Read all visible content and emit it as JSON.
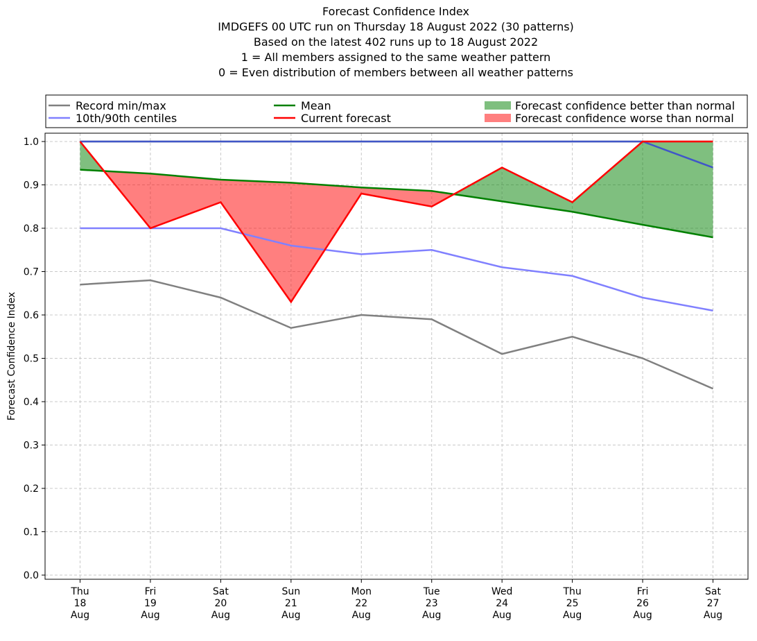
{
  "chart_data": {
    "type": "line",
    "title": "Forecast Confidence Index",
    "subtitle_lines": [
      "IMDGEFS 00 UTC run on Thursday 18 August 2022 (30 patterns)",
      "Based on the latest 402 runs up to 18 August 2022",
      "1 = All members assigned to the same weather pattern",
      "0 = Even distribution of members between all weather patterns"
    ],
    "xlabel": "",
    "ylabel": "Forecast Confidence Index",
    "ylim": [
      0.0,
      1.0
    ],
    "yticks": [
      "0.0",
      "0.1",
      "0.2",
      "0.3",
      "0.4",
      "0.5",
      "0.6",
      "0.7",
      "0.8",
      "0.9",
      "1.0"
    ],
    "categories": [
      [
        "Thu",
        "18",
        "Aug"
      ],
      [
        "Fri",
        "19",
        "Aug"
      ],
      [
        "Sat",
        "20",
        "Aug"
      ],
      [
        "Sun",
        "21",
        "Aug"
      ],
      [
        "Mon",
        "22",
        "Aug"
      ],
      [
        "Tue",
        "23",
        "Aug"
      ],
      [
        "Wed",
        "24",
        "Aug"
      ],
      [
        "Thu",
        "25",
        "Aug"
      ],
      [
        "Fri",
        "26",
        "Aug"
      ],
      [
        "Sat",
        "27",
        "Aug"
      ]
    ],
    "grid": true,
    "legend_position": "top",
    "series": [
      {
        "name": "Record min/max",
        "role": "record_min",
        "color": "#808080",
        "values": [
          0.67,
          0.68,
          0.64,
          0.57,
          0.6,
          0.59,
          0.51,
          0.55,
          0.5,
          0.43
        ]
      },
      {
        "role": "record_max",
        "color": "#808080",
        "values": [
          1.0,
          1.0,
          1.0,
          1.0,
          1.0,
          1.0,
          1.0,
          1.0,
          1.0,
          1.0
        ]
      },
      {
        "name": "10th/90th centiles",
        "role": "p10",
        "color": "#8080ff",
        "values": [
          0.8,
          0.8,
          0.8,
          0.76,
          0.74,
          0.75,
          0.71,
          0.69,
          0.64,
          0.61
        ]
      },
      {
        "role": "p90",
        "color": "#4056c8",
        "values": [
          1.0,
          1.0,
          1.0,
          1.0,
          1.0,
          1.0,
          1.0,
          1.0,
          1.0,
          0.94
        ]
      },
      {
        "name": "Mean",
        "role": "mean",
        "color": "#008000",
        "values": [
          0.935,
          0.926,
          0.912,
          0.905,
          0.894,
          0.886,
          0.862,
          0.838,
          0.808,
          0.779
        ]
      },
      {
        "name": "Current forecast",
        "role": "current",
        "color": "#ff0000",
        "values": [
          1.0,
          0.8,
          0.86,
          0.63,
          0.88,
          0.85,
          0.94,
          0.86,
          1.0,
          1.0
        ]
      }
    ],
    "fills": [
      {
        "name": "Forecast confidence better than normal",
        "color": "#008000",
        "opacity": 0.5
      },
      {
        "name": "Forecast confidence worse than normal",
        "color": "#ff0000",
        "opacity": 0.5
      }
    ]
  }
}
